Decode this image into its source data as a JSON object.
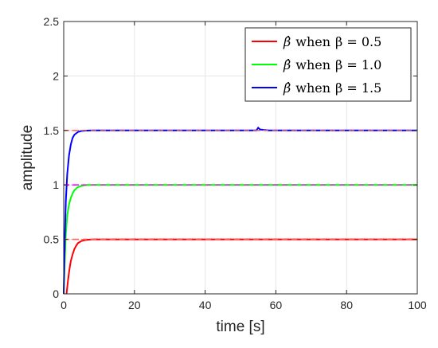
{
  "chart_data": {
    "type": "line",
    "xlabel": "time [s]",
    "ylabel": "amplitude",
    "xlim": [
      0,
      100
    ],
    "ylim": [
      0,
      2.5
    ],
    "xticks": [
      "0",
      "20",
      "40",
      "60",
      "80",
      "100"
    ],
    "yticks": [
      "0",
      "0.5",
      "1",
      "1.5",
      "2",
      "2.5"
    ],
    "grid": true,
    "legend_position": "top-right",
    "series": [
      {
        "name": "β̂ when β = 0.5",
        "color": "#ff0000",
        "x": [
          0.8,
          1.2,
          1.6,
          2.0,
          2.5,
          3.0,
          3.5,
          4.0,
          5.0,
          6.0,
          7.0,
          8.0,
          10.0,
          100.0
        ],
        "y": [
          0.0,
          0.12,
          0.22,
          0.3,
          0.36,
          0.41,
          0.44,
          0.465,
          0.485,
          0.493,
          0.497,
          0.5,
          0.5,
          0.5
        ]
      },
      {
        "name": "β̂ when β = 1.0",
        "color": "#00ff00",
        "x": [
          0.0,
          0.3,
          0.6,
          1.0,
          1.5,
          2.0,
          2.5,
          3.0,
          4.0,
          5.0,
          6.0,
          7.0,
          100.0
        ],
        "y": [
          0.0,
          0.3,
          0.55,
          0.72,
          0.82,
          0.88,
          0.92,
          0.95,
          0.98,
          0.99,
          0.997,
          1.0,
          1.0
        ]
      },
      {
        "name": "β̂ when β = 1.5",
        "color": "#0000ff",
        "x": [
          0.0,
          0.3,
          0.6,
          1.0,
          1.5,
          2.0,
          2.5,
          3.0,
          4.0,
          5.0,
          6.0,
          8.0,
          54.5,
          55.0,
          55.5,
          56.5,
          58.0,
          100.0
        ],
        "y": [
          0.0,
          0.5,
          0.85,
          1.1,
          1.27,
          1.37,
          1.43,
          1.46,
          1.485,
          1.495,
          1.498,
          1.5,
          1.5,
          1.525,
          1.51,
          1.505,
          1.5,
          1.5
        ]
      }
    ],
    "reference_lines": [
      {
        "y": 0.5,
        "color": "#ff6666",
        "style": "dashed"
      },
      {
        "y": 1.0,
        "color": "#ff00ff",
        "style": "dashed"
      },
      {
        "y": 1.5,
        "color": "#ff6666",
        "style": "dashed"
      }
    ]
  },
  "legend": {
    "items": [
      {
        "hat": "β̂",
        "word": "when",
        "eq": "β = 0.5"
      },
      {
        "hat": "β̂",
        "word": "when",
        "eq": "β = 1.0"
      },
      {
        "hat": "β̂",
        "word": "when",
        "eq": "β = 1.5"
      }
    ]
  }
}
